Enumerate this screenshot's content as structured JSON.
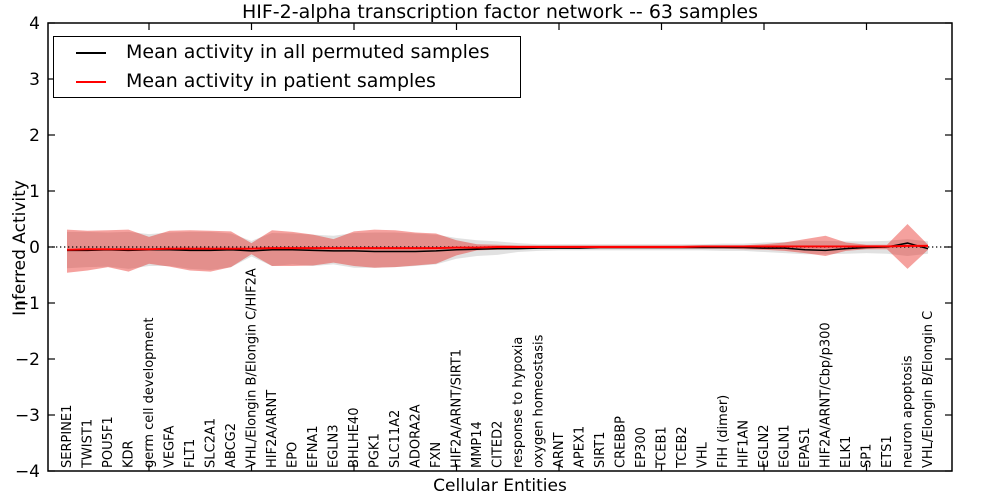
{
  "chart_data": {
    "type": "line",
    "title": "HIF-2-alpha transcription factor network -- 63 samples",
    "xlabel": "Cellular Entities",
    "ylabel": "Inferred Activity",
    "ylim": [
      -4,
      4
    ],
    "grid": false,
    "legend_position": "upper left",
    "zero_line": {
      "value": 0,
      "style": "dotted",
      "color": "#000000"
    },
    "yticks": [
      {
        "v": 4,
        "label": "4"
      },
      {
        "v": 3,
        "label": "3"
      },
      {
        "v": 2,
        "label": "2"
      },
      {
        "v": 1,
        "label": "1"
      },
      {
        "v": 0,
        "label": "0"
      },
      {
        "v": -1,
        "label": "−1"
      },
      {
        "v": -2,
        "label": "−2"
      },
      {
        "v": -3,
        "label": "−3"
      },
      {
        "v": -4,
        "label": "−4"
      }
    ],
    "xtick_indices": [
      4,
      9,
      14,
      19,
      24,
      29,
      34,
      39
    ],
    "categories": [
      "SERPINE1",
      "TWIST1",
      "POU5F1",
      "KDR",
      "germ cell development",
      "VEGFA",
      "FLT1",
      "SLC2A1",
      "ABCG2",
      "VHL/Elongin B/Elongin C/HIF2A",
      "HIF2A/ARNT",
      "EPO",
      "EFNA1",
      "EGLN3",
      "BHLHE40",
      "PGK1",
      "SLC11A2",
      "ADORA2A",
      "FXN",
      "HIF2A/ARNT/SIRT1",
      "MMP14",
      "CITED2",
      "response to hypoxia",
      "oxygen homeostasis",
      "ARNT",
      "APEX1",
      "SIRT1",
      "CREBBP",
      "EP300",
      "TCEB1",
      "TCEB2",
      "VHL",
      "FIH (dimer)",
      "HIF1AN",
      "EGLN2",
      "EGLN1",
      "EPAS1",
      "HIF2A/ARNT/Cbp/p300",
      "ELK1",
      "SP1",
      "ETS1",
      "neuron apoptosis",
      "VHL/Elongin B/Elongin C"
    ],
    "series": [
      {
        "name": "Mean activity in all permuted samples",
        "role": "mean",
        "color": "#000000",
        "values": [
          -0.06,
          -0.06,
          -0.05,
          -0.06,
          -0.05,
          -0.05,
          -0.06,
          -0.06,
          -0.05,
          -0.07,
          -0.05,
          -0.05,
          -0.06,
          -0.07,
          -0.07,
          -0.08,
          -0.08,
          -0.08,
          -0.07,
          -0.05,
          -0.04,
          -0.03,
          -0.03,
          -0.02,
          -0.02,
          -0.02,
          -0.01,
          -0.01,
          -0.01,
          -0.01,
          -0.01,
          -0.01,
          -0.01,
          -0.01,
          -0.02,
          -0.02,
          -0.05,
          -0.06,
          -0.03,
          -0.01,
          0.0,
          0.07,
          -0.03
        ]
      },
      {
        "name": "Mean activity in patient samples",
        "role": "mean",
        "color": "#ff0000",
        "values": [
          -0.05,
          -0.04,
          -0.04,
          -0.04,
          -0.04,
          -0.03,
          -0.03,
          -0.03,
          -0.03,
          -0.03,
          -0.02,
          -0.02,
          -0.02,
          -0.02,
          -0.02,
          -0.02,
          -0.02,
          -0.02,
          -0.02,
          -0.01,
          -0.01,
          0.0,
          0.0,
          0.0,
          0.0,
          0.0,
          0.0,
          0.0,
          0.0,
          0.0,
          0.0,
          0.01,
          0.01,
          0.01,
          0.01,
          0.01,
          0.01,
          0.01,
          0.01,
          0.01,
          0.01,
          0.02,
          0.02
        ]
      },
      {
        "name": "Permuted samples band",
        "role": "band",
        "color": "#5a5a5a",
        "opacity": 0.18,
        "upper": [
          0.27,
          0.27,
          0.26,
          0.27,
          0.23,
          0.26,
          0.27,
          0.27,
          0.24,
          0.11,
          0.25,
          0.24,
          0.22,
          0.2,
          0.25,
          0.26,
          0.26,
          0.24,
          0.22,
          0.16,
          0.12,
          0.1,
          0.07,
          0.05,
          0.05,
          0.05,
          0.05,
          0.05,
          0.05,
          0.05,
          0.05,
          0.05,
          0.06,
          0.06,
          0.08,
          0.09,
          0.11,
          0.11,
          0.1,
          0.1,
          0.11,
          0.14,
          0.1
        ],
        "lower": [
          -0.38,
          -0.36,
          -0.35,
          -0.39,
          -0.34,
          -0.34,
          -0.39,
          -0.41,
          -0.36,
          -0.17,
          -0.34,
          -0.31,
          -0.34,
          -0.31,
          -0.37,
          -0.37,
          -0.36,
          -0.34,
          -0.31,
          -0.21,
          -0.16,
          -0.14,
          -0.09,
          -0.07,
          -0.06,
          -0.06,
          -0.06,
          -0.06,
          -0.06,
          -0.06,
          -0.06,
          -0.06,
          -0.07,
          -0.07,
          -0.09,
          -0.11,
          -0.13,
          -0.13,
          -0.12,
          -0.11,
          -0.12,
          -0.16,
          -0.12
        ]
      },
      {
        "name": "Patient samples band",
        "role": "band",
        "color": "#e61e19",
        "opacity": 0.42,
        "upper": [
          0.31,
          0.29,
          0.3,
          0.31,
          0.18,
          0.29,
          0.3,
          0.29,
          0.28,
          0.07,
          0.3,
          0.27,
          0.22,
          0.14,
          0.28,
          0.31,
          0.3,
          0.26,
          0.24,
          0.12,
          0.05,
          0.04,
          0.03,
          0.03,
          0.03,
          0.03,
          0.03,
          0.03,
          0.03,
          0.03,
          0.03,
          0.03,
          0.03,
          0.03,
          0.05,
          0.08,
          0.14,
          0.2,
          0.08,
          0.04,
          0.04,
          0.41,
          0.04
        ],
        "lower": [
          -0.46,
          -0.42,
          -0.36,
          -0.44,
          -0.3,
          -0.35,
          -0.42,
          -0.44,
          -0.36,
          -0.13,
          -0.34,
          -0.34,
          -0.33,
          -0.28,
          -0.34,
          -0.37,
          -0.36,
          -0.33,
          -0.3,
          -0.15,
          -0.06,
          -0.05,
          -0.04,
          -0.03,
          -0.03,
          -0.03,
          -0.03,
          -0.03,
          -0.03,
          -0.03,
          -0.03,
          -0.03,
          -0.03,
          -0.04,
          -0.05,
          -0.07,
          -0.11,
          -0.16,
          -0.07,
          -0.04,
          -0.04,
          -0.39,
          -0.05
        ]
      }
    ]
  }
}
